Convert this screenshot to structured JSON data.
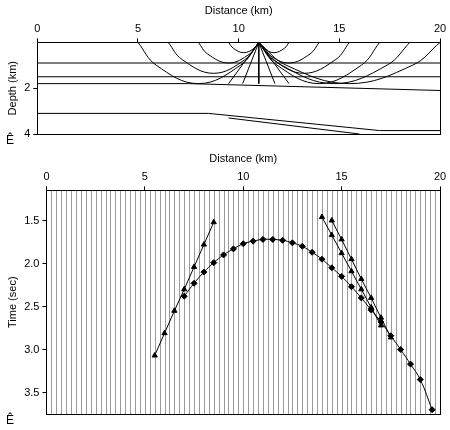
{
  "chart_data": [
    {
      "type": "line",
      "xlabel": "Distance (km)",
      "ylabel": "Depth (km)",
      "xlim": [
        0,
        20
      ],
      "xticks": [
        0,
        5,
        10,
        15,
        20
      ],
      "ylim": [
        0,
        4
      ],
      "yticks": [
        2,
        4
      ],
      "grid": false,
      "annotation": "Ê",
      "series": [
        {
          "type": "line",
          "color": "#000000",
          "x": [
            0,
            20
          ],
          "values": [
            0.9,
            0.9
          ]
        },
        {
          "type": "line",
          "color": "#000000",
          "x": [
            0,
            20
          ],
          "values": [
            1.5,
            1.5
          ]
        },
        {
          "type": "line",
          "color": "#000000",
          "x": [
            0,
            7.5,
            20
          ],
          "values": [
            1.8,
            1.8,
            2.1
          ]
        },
        {
          "type": "line",
          "color": "#000000",
          "x": [
            0,
            8.5,
            17,
            20
          ],
          "values": [
            3.1,
            3.1,
            3.85,
            3.85
          ]
        },
        {
          "type": "line",
          "color": "#000000",
          "x": [
            9.5,
            16
          ],
          "values": [
            3.3,
            4.0
          ]
        },
        {
          "type": "spline",
          "color": "#000000",
          "x": [
            11,
            10.1,
            8,
            5.9,
            5
          ],
          "values": [
            0,
            0.99,
            1.8,
            0.99,
            0
          ]
        },
        {
          "type": "spline",
          "color": "#000000",
          "x": [
            11,
            10.33,
            8.75,
            7.18,
            6.5
          ],
          "values": [
            0,
            0.74,
            1.35,
            0.74,
            0
          ]
        },
        {
          "type": "spline",
          "color": "#000000",
          "x": [
            11,
            10.55,
            9.5,
            8.45,
            8
          ],
          "values": [
            0,
            0.5,
            0.9,
            0.5,
            0
          ]
        },
        {
          "type": "spline",
          "color": "#000000",
          "x": [
            11,
            10.78,
            10.25,
            9.73,
            9.5
          ],
          "values": [
            0,
            0.25,
            0.45,
            0.25,
            0
          ]
        },
        {
          "type": "spline",
          "color": "#000000",
          "x": [
            11,
            11.23,
            11.75,
            12.28,
            12.5
          ],
          "values": [
            0,
            0.25,
            0.45,
            0.25,
            0
          ]
        },
        {
          "type": "spline",
          "color": "#000000",
          "x": [
            11,
            11.45,
            12.5,
            13.55,
            14
          ],
          "values": [
            0,
            0.5,
            0.9,
            0.5,
            0
          ]
        },
        {
          "type": "spline",
          "color": "#000000",
          "x": [
            11,
            11.68,
            13.25,
            14.83,
            15.5
          ],
          "values": [
            0,
            0.74,
            1.35,
            0.74,
            0
          ]
        },
        {
          "type": "spline",
          "color": "#000000",
          "x": [
            11,
            11.9,
            14,
            16.1,
            17
          ],
          "values": [
            0,
            0.99,
            1.8,
            0.99,
            0
          ]
        },
        {
          "type": "spline",
          "color": "#000000",
          "x": [
            11,
            12.13,
            14.75,
            17.38,
            18.5
          ],
          "values": [
            0,
            0.99,
            1.8,
            0.99,
            0
          ]
        },
        {
          "type": "spline",
          "color": "#000000",
          "x": [
            11,
            12.35,
            15.5,
            18.65,
            20
          ],
          "values": [
            0,
            0.99,
            1.8,
            0.99,
            0
          ]
        },
        {
          "type": "line",
          "color": "#000000",
          "x": [
            11,
            11
          ],
          "values": [
            0,
            1.8
          ]
        },
        {
          "type": "line",
          "color": "#000000",
          "x": [
            11,
            9.5
          ],
          "values": [
            0,
            1.8
          ]
        },
        {
          "type": "line",
          "color": "#000000",
          "x": [
            11,
            12.5
          ],
          "values": [
            0,
            1.8
          ]
        },
        {
          "type": "line",
          "color": "#000000",
          "x": [
            11,
            10.2
          ],
          "values": [
            0,
            1.8
          ]
        },
        {
          "type": "line",
          "color": "#000000",
          "x": [
            11,
            11.8
          ],
          "values": [
            0,
            1.8
          ]
        }
      ]
    },
    {
      "type": "line",
      "xlabel": "Distance (km)",
      "ylabel": "Time (sec)",
      "xlim": [
        0,
        20
      ],
      "xticks": [
        0,
        5,
        10,
        15,
        20
      ],
      "ylim": [
        1.15,
        3.75
      ],
      "yticks": [
        1.5,
        {
          "value": 2,
          "label": "2.0"
        },
        2.5,
        {
          "value": 3,
          "label": "3.0"
        },
        3.5
      ],
      "grid": false,
      "annotation": "Ê",
      "traces_x": [
        0.25,
        0.5,
        0.75,
        1,
        1.25,
        1.5,
        1.75,
        2,
        2.25,
        2.5,
        2.75,
        3,
        3.25,
        3.5,
        3.75,
        4,
        4.25,
        4.5,
        4.75,
        5,
        5.25,
        5.5,
        5.75,
        6,
        6.25,
        6.5,
        6.75,
        7,
        7.25,
        7.5,
        7.75,
        8,
        8.25,
        8.5,
        8.75,
        9,
        9.25,
        9.5,
        9.75,
        10,
        10.25,
        10.5,
        10.75,
        11,
        11.25,
        11.5,
        11.75,
        12,
        12.25,
        12.5,
        12.75,
        13,
        13.25,
        13.5,
        13.75,
        14,
        14.25,
        14.5,
        14.75,
        15,
        15.25,
        15.5,
        15.75,
        16,
        16.25,
        16.5,
        16.75,
        17,
        17.25,
        17.5,
        17.75,
        18,
        18.25,
        18.5,
        18.75,
        19,
        19.25,
        19.5,
        19.75
      ],
      "series": [
        {
          "type": "spline",
          "color": "#000000",
          "marker": "diamond",
          "x": [
            7,
            7.5,
            8,
            8.5,
            9,
            9.5,
            10,
            10.5,
            11,
            11.5,
            12,
            12.5,
            13,
            13.5,
            14,
            14.5,
            15,
            15.5,
            16,
            16.5,
            17,
            17.5,
            18,
            18.5,
            19,
            19.6
          ],
          "values": [
            2.38,
            2.23,
            2.1,
            1.99,
            1.9,
            1.83,
            1.77,
            1.74,
            1.72,
            1.72,
            1.73,
            1.76,
            1.8,
            1.87,
            1.95,
            2.05,
            2.15,
            2.27,
            2.4,
            2.54,
            2.68,
            2.84,
            3.0,
            3.17,
            3.35,
            3.7
          ]
        },
        {
          "type": "line",
          "color": "#000000",
          "marker": "triangle",
          "x": [
            5.5,
            6,
            6.5,
            7,
            7.5,
            8,
            8.5
          ],
          "values": [
            3.07,
            2.81,
            2.55,
            2.3,
            2.04,
            1.78,
            1.52
          ]
        },
        {
          "type": "line",
          "color": "#000000",
          "marker": "triangle",
          "x": [
            14,
            14.5,
            15,
            15.5,
            16,
            16.5,
            17
          ],
          "values": [
            1.46,
            1.67,
            1.88,
            2.09,
            2.3,
            2.51,
            2.72
          ]
        },
        {
          "type": "line",
          "color": "#000000",
          "marker": "triangle",
          "x": [
            14.5,
            15,
            15.5,
            16,
            16.5,
            17,
            17.5
          ],
          "values": [
            1.5,
            1.72,
            1.95,
            2.18,
            2.4,
            2.63,
            2.86
          ]
        }
      ]
    }
  ]
}
